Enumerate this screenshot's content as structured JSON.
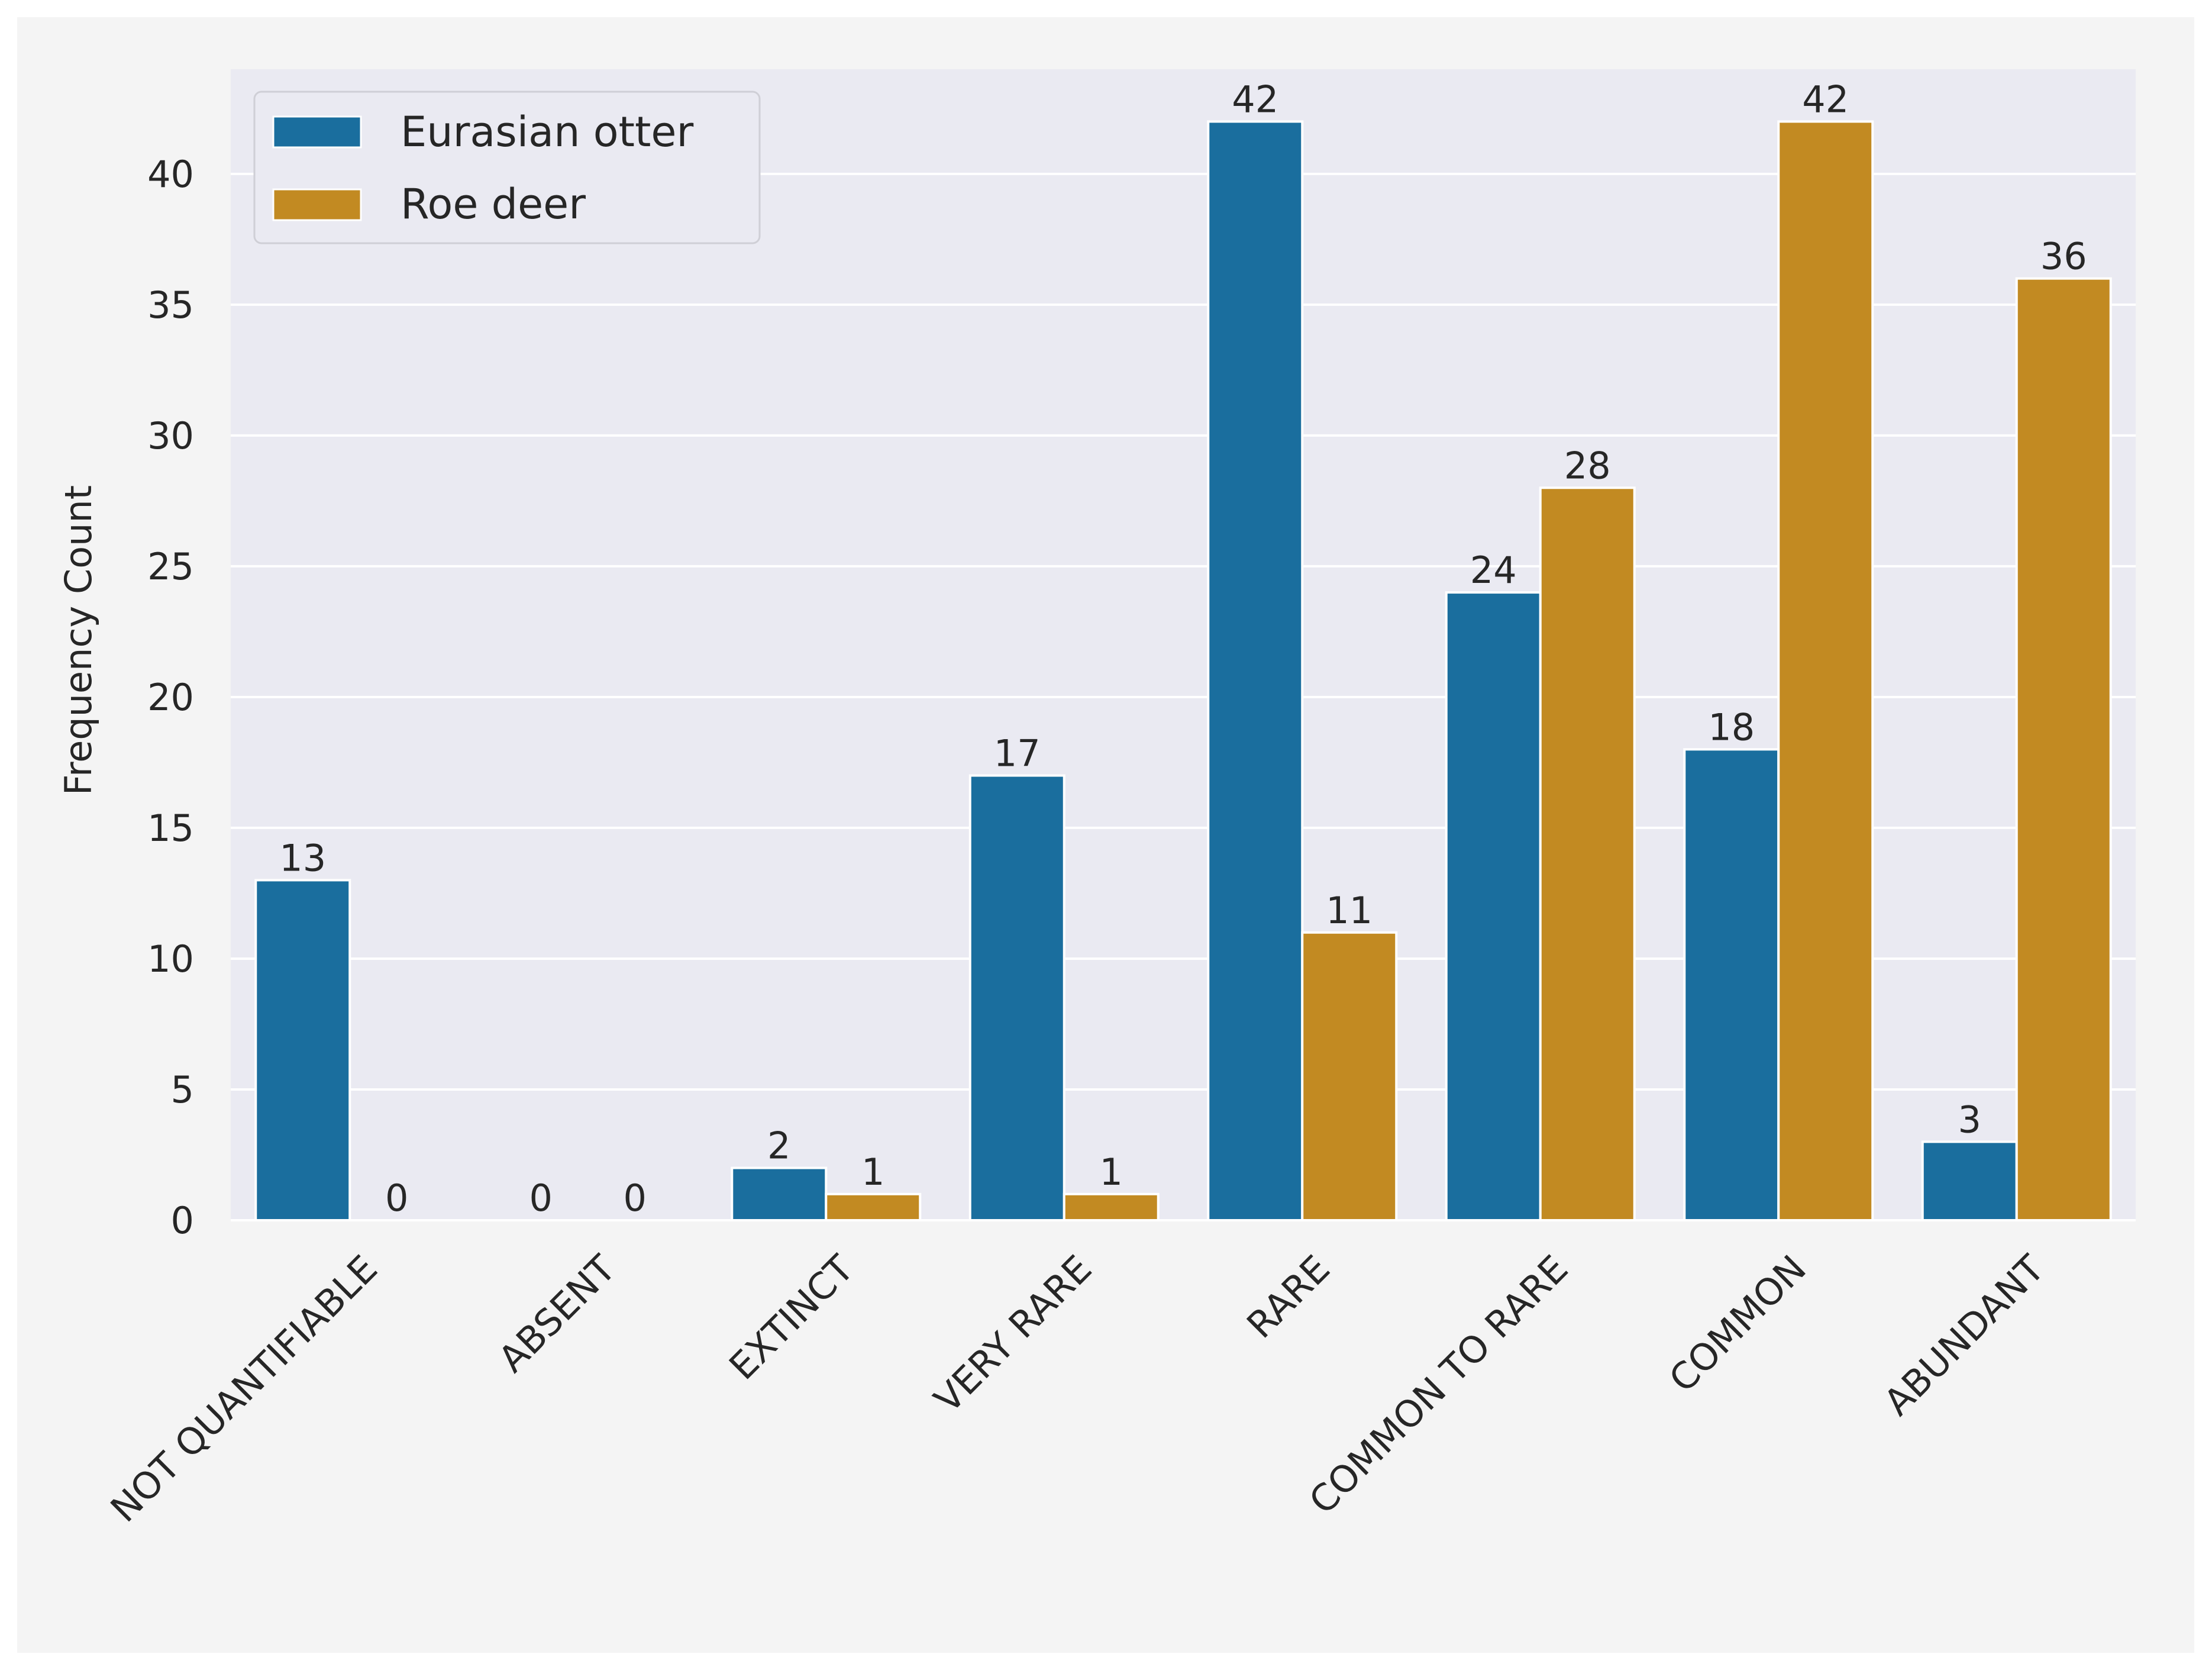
{
  "chart_data": {
    "type": "bar",
    "title": "",
    "xlabel": "",
    "ylabel": "Frequency Count",
    "ylim": [
      0,
      44
    ],
    "yticks": [
      0,
      5,
      10,
      15,
      20,
      25,
      30,
      35,
      40
    ],
    "grid": true,
    "legend_position": "top-left",
    "categories": [
      "NOT QUANTIFIABLE",
      "ABSENT",
      "EXTINCT",
      "VERY RARE",
      "RARE",
      "COMMON TO RARE",
      "COMMON",
      "ABUNDANT"
    ],
    "series": [
      {
        "name": "Eurasian otter",
        "color": "#1a6e9e",
        "values": [
          13,
          0,
          2,
          17,
          42,
          24,
          18,
          3
        ],
        "labels": [
          "13",
          "",
          "2",
          "17",
          "42",
          "24",
          "18",
          "3"
        ]
      },
      {
        "name": "Roe deer",
        "color": "#c28a22",
        "values": [
          0,
          0,
          1,
          1,
          11,
          28,
          42,
          36
        ],
        "labels": [
          "0",
          "0",
          "1",
          "1",
          "11",
          "28",
          "42",
          "36"
        ]
      }
    ],
    "absent_label_left": "0"
  },
  "colors": {
    "plot_background": "#eaeaf2",
    "figure_background": "#f4f4f4",
    "grid": "#ffffff",
    "text": "#262626"
  }
}
